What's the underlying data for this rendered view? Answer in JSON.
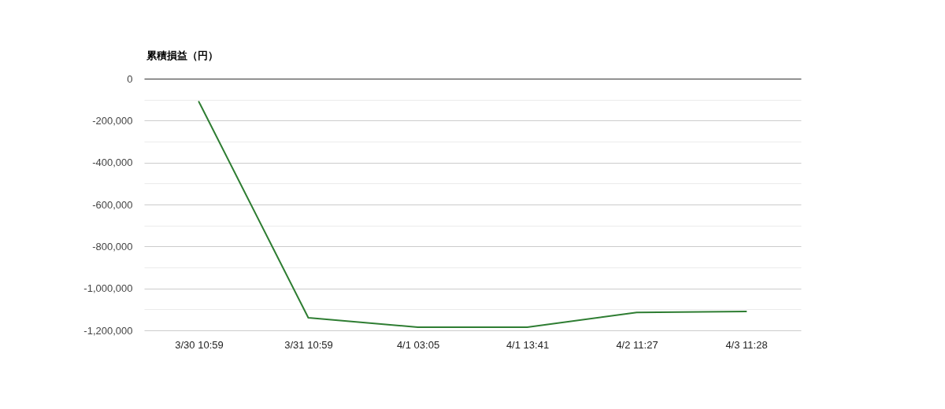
{
  "chart_data": {
    "type": "line",
    "ylabel": "累積損益（円）",
    "categories": [
      "3/30 10:59",
      "3/31 10:59",
      "4/1 03:05",
      "4/1 13:41",
      "4/2 11:27",
      "4/3 11:28"
    ],
    "series": [
      {
        "color": "#2e7d32",
        "values": [
          -110000,
          -1140000,
          -1185000,
          -1185000,
          -1115000,
          -1110000
        ]
      }
    ],
    "ylim": [
      -1200000,
      0
    ],
    "yticks": [
      {
        "value": -1200000,
        "label": "-1,200,000"
      },
      {
        "value": -1100000,
        "label": null
      },
      {
        "value": -1000000,
        "label": "-1,000,000"
      },
      {
        "value": -900000,
        "label": null
      },
      {
        "value": -800000,
        "label": "-800,000"
      },
      {
        "value": -700000,
        "label": null
      },
      {
        "value": -600000,
        "label": "-600,000"
      },
      {
        "value": -500000,
        "label": null
      },
      {
        "value": -400000,
        "label": "-400,000"
      },
      {
        "value": -300000,
        "label": null
      },
      {
        "value": -200000,
        "label": "-200,000"
      },
      {
        "value": -100000,
        "label": null
      },
      0
    ],
    "grid": "y"
  }
}
